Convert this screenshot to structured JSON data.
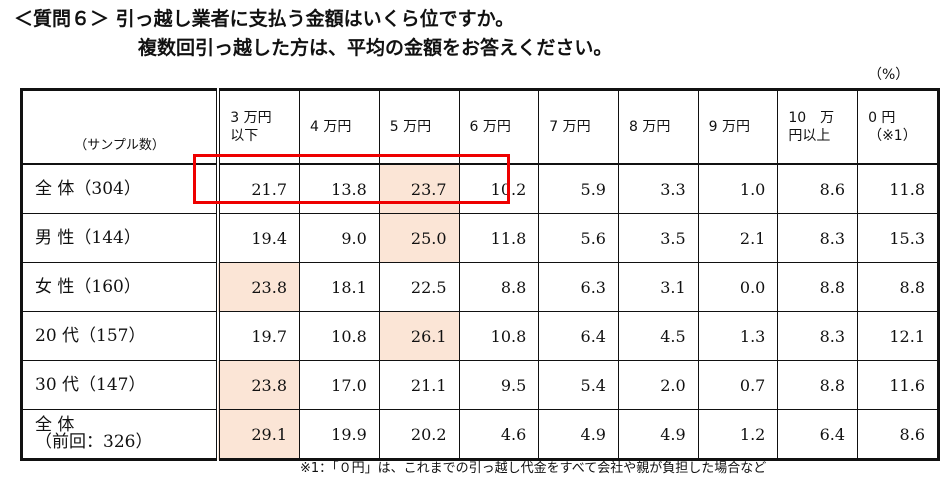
{
  "header": {
    "title_line1": "＜質問６＞ 引っ越し業者に支払う金額はいくら位ですか。",
    "title_line2": "複数回引っ越した方は、平均の金額をお答えください。",
    "unit": "（%）"
  },
  "table": {
    "corner": "（サンプル数）",
    "columns": [
      "3 万円\n以下",
      "4 万円",
      "5 万円",
      "6 万円",
      "7 万円",
      "8 万円",
      "9 万円",
      "10　万\n円以上",
      "0 円\n（※1）"
    ],
    "rows": [
      {
        "label": "全 体（304）",
        "values": [
          "21.7",
          "13.8",
          "23.7",
          "10.2",
          "5.9",
          "3.3",
          "1.0",
          "8.6",
          "11.8"
        ]
      },
      {
        "label": "男 性（144）",
        "values": [
          "19.4",
          "9.0",
          "25.0",
          "11.8",
          "5.6",
          "3.5",
          "2.1",
          "8.3",
          "15.3"
        ]
      },
      {
        "label": "女 性（160）",
        "values": [
          "23.8",
          "18.1",
          "22.5",
          "8.8",
          "6.3",
          "3.1",
          "0.0",
          "8.8",
          "8.8"
        ]
      },
      {
        "label": "20 代（157）",
        "values": [
          "19.7",
          "10.8",
          "26.1",
          "10.8",
          "6.4",
          "4.5",
          "1.3",
          "8.3",
          "12.1"
        ]
      },
      {
        "label": "30 代（147）",
        "values": [
          "23.8",
          "17.0",
          "21.1",
          "9.5",
          "5.4",
          "2.0",
          "0.7",
          "8.8",
          "11.6"
        ]
      },
      {
        "label": "全 体\n（前回：326）",
        "values": [
          "29.1",
          "19.9",
          "20.2",
          "4.6",
          "4.9",
          "4.9",
          "1.2",
          "6.4",
          "8.6"
        ]
      }
    ]
  },
  "footnote": "※1：「０円」は、これまでの引っ越し代金をすべて会社や親が負担した場合など"
}
